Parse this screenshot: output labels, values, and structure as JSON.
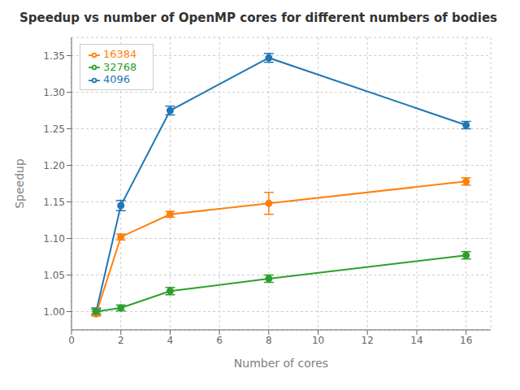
{
  "chart_data": {
    "type": "line",
    "title": "Speedup vs number of OpenMP cores for different numbers of bodies",
    "xlabel": "Number of cores",
    "ylabel": "Speedup",
    "x": [
      1,
      2,
      4,
      8,
      16
    ],
    "series": [
      {
        "name": "4096",
        "color": "#1f77b4",
        "values": [
          1.0,
          1.145,
          1.275,
          1.347,
          1.255
        ],
        "yerr": [
          0.005,
          0.007,
          0.006,
          0.006,
          0.005
        ]
      },
      {
        "name": "16384",
        "color": "#ff7f0e",
        "values": [
          0.997,
          1.102,
          1.133,
          1.148,
          1.178
        ],
        "yerr": [
          0.003,
          0.004,
          0.004,
          0.015,
          0.005
        ]
      },
      {
        "name": "32768",
        "color": "#2ca02c",
        "values": [
          1.0,
          1.005,
          1.028,
          1.045,
          1.077
        ],
        "yerr": [
          0.003,
          0.004,
          0.005,
          0.005,
          0.005
        ]
      }
    ],
    "xlim": [
      0,
      17
    ],
    "ylim": [
      0.975,
      1.375
    ],
    "xticks": [
      0,
      2,
      4,
      6,
      8,
      10,
      12,
      14,
      16
    ],
    "yticks": [
      {
        "value": 1.0,
        "label": "1.00"
      },
      1.05,
      {
        "value": 1.1,
        "label": "1.10"
      },
      1.15,
      {
        "value": 1.2,
        "label": "1.20"
      },
      1.25,
      {
        "value": 1.3,
        "label": "1.30"
      },
      1.35
    ],
    "grid": true,
    "legend": "upper left",
    "marker": "circle"
  }
}
